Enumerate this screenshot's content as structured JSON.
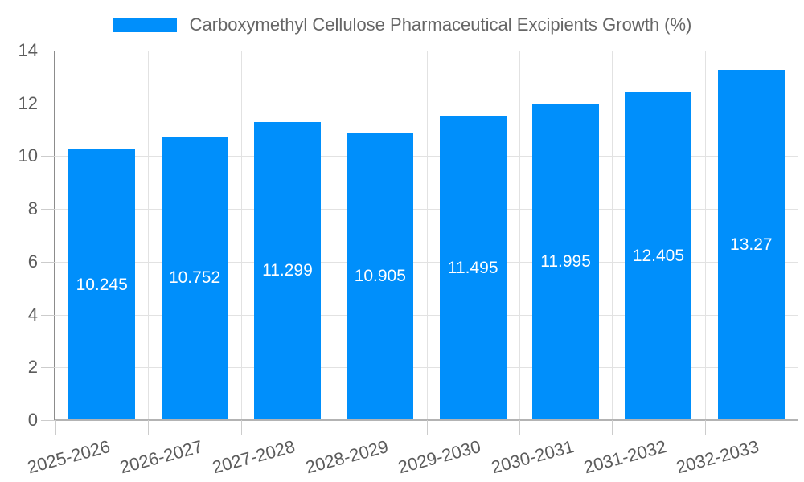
{
  "chart_data": {
    "type": "bar",
    "title": "Carboxymethyl Cellulose Pharmaceutical Excipients Growth (%)",
    "xlabel": "",
    "ylabel": "",
    "categories": [
      "2025-2026",
      "2026-2027",
      "2027-2028",
      "2028-2029",
      "2029-2030",
      "2030-2031",
      "2031-2032",
      "2032-2033"
    ],
    "series": [
      {
        "name": "Carboxymethyl Cellulose Pharmaceutical Excipients Growth (%)",
        "values": [
          10.245,
          10.752,
          11.299,
          10.905,
          11.495,
          11.995,
          12.405,
          13.27
        ],
        "value_labels": [
          "10.245",
          "10.752",
          "11.299",
          "10.905",
          "11.495",
          "11.995",
          "12.405",
          "13.27"
        ]
      }
    ],
    "ylim": [
      0,
      14
    ],
    "yticks": [
      0,
      2,
      4,
      6,
      8,
      10,
      12,
      14
    ],
    "ytick_labels": [
      "0",
      "2",
      "4",
      "6",
      "8",
      "10",
      "12",
      "14"
    ],
    "grid": true,
    "legend_position": "top",
    "x_label_rotation_deg": -15,
    "colors": {
      "bar": "#008FFB",
      "bar_label": "#FFFFFF",
      "title": "#666666",
      "axis_label": "#5C5C5C",
      "gridline": "#E2E2E2",
      "y_axis_line": "#8C8C8C",
      "x_axis_line": "#B3B3B3",
      "tick": "#CCCCCC",
      "background": "#FFFFFF"
    }
  }
}
